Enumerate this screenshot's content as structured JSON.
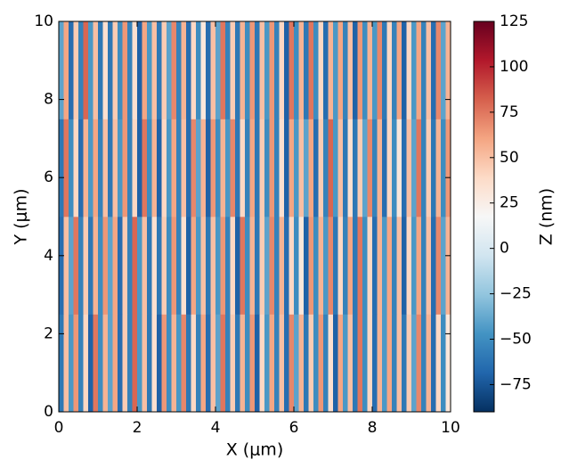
{
  "chart_data": {
    "type": "heatmap",
    "xlabel": "X (μm)",
    "ylabel": "Y (μm)",
    "colorbar_label": "Z (nm)",
    "xlim": [
      0,
      10
    ],
    "ylim": [
      0,
      10
    ],
    "xticks": [
      0,
      2,
      4,
      6,
      8,
      10
    ],
    "yticks": [
      0,
      2,
      4,
      6,
      8,
      10
    ],
    "zlim": [
      -90,
      125
    ],
    "zticks": [
      {
        "value": -75,
        "label": "−75"
      },
      {
        "value": -50,
        "label": "−50"
      },
      {
        "value": -25,
        "label": "−25"
      },
      0,
      25,
      50,
      75,
      100,
      125
    ],
    "colormap": [
      "#053061",
      "#2166ac",
      "#4393c3",
      "#92c5de",
      "#d1e5f0",
      "#f7f7f7",
      "#fddbc7",
      "#f4a582",
      "#d6604d",
      "#b2182b",
      "#67001f"
    ],
    "z": [
      [
        -60,
        50,
        -45,
        65,
        -55,
        40,
        -70,
        75,
        -50,
        55,
        -40,
        60,
        -65,
        45,
        -55,
        80,
        -45,
        50,
        -60,
        35,
        -70,
        65,
        -50,
        55,
        -45,
        70,
        -60,
        40,
        -55,
        60,
        -65,
        50,
        -40,
        75,
        -55,
        45,
        -60,
        55,
        -50,
        65,
        -70,
        40,
        -45,
        60,
        -55,
        50,
        -65,
        70,
        -40,
        55,
        -60,
        45,
        -50,
        65,
        -55,
        35,
        -70,
        60,
        -45,
        50,
        -60,
        75,
        -50,
        40,
        -65,
        55,
        -45,
        60,
        -55,
        50,
        -60,
        45,
        -40,
        70,
        -55,
        55,
        -65,
        40,
        -50,
        30
      ],
      [
        -65,
        50,
        -40,
        75,
        -55,
        45,
        -60,
        55,
        -50,
        65,
        -40,
        60,
        -65,
        45,
        -55,
        80,
        -45,
        50,
        -60,
        35,
        -60,
        45,
        -50,
        65,
        -55,
        35,
        -70,
        60,
        -45,
        50,
        -60,
        50,
        -45,
        65,
        -55,
        40,
        -70,
        75,
        -50,
        55,
        -60,
        45,
        -40,
        70,
        -55,
        55,
        -65,
        40,
        -50,
        30,
        -70,
        65,
        -50,
        55,
        -45,
        70,
        -60,
        40,
        -55,
        60,
        -60,
        75,
        -50,
        40,
        -65,
        55,
        -45,
        60,
        -55,
        50,
        -70,
        40,
        -45,
        60,
        -55,
        50,
        -65,
        70,
        -40,
        55
      ],
      [
        -60,
        75,
        -50,
        40,
        -65,
        55,
        -45,
        60,
        -55,
        50,
        -60,
        50,
        -45,
        65,
        -55,
        40,
        -70,
        75,
        -50,
        55,
        -70,
        40,
        -45,
        60,
        -55,
        50,
        -65,
        70,
        -40,
        55,
        -70,
        65,
        -50,
        55,
        -45,
        70,
        -60,
        40,
        -55,
        60,
        -60,
        45,
        -50,
        65,
        -55,
        35,
        -70,
        60,
        -45,
        50,
        -40,
        60,
        -65,
        45,
        -55,
        80,
        -45,
        50,
        -60,
        35,
        -60,
        45,
        -40,
        70,
        -55,
        55,
        -65,
        40,
        -50,
        30,
        -65,
        50,
        -40,
        75,
        -55,
        45,
        -60,
        55,
        -50,
        65
      ],
      [
        -40,
        60,
        -65,
        45,
        -55,
        80,
        -45,
        50,
        -60,
        35,
        -60,
        45,
        -50,
        65,
        -55,
        35,
        -70,
        60,
        -45,
        50,
        -60,
        45,
        -40,
        70,
        -55,
        55,
        -65,
        40,
        -50,
        30,
        -65,
        50,
        -40,
        75,
        -55,
        45,
        -60,
        55,
        -50,
        65,
        -60,
        50,
        -45,
        65,
        -55,
        40,
        -70,
        75,
        -50,
        55,
        -60,
        75,
        -50,
        40,
        -65,
        55,
        -45,
        60,
        -55,
        50,
        -70,
        65,
        -50,
        55,
        -45,
        70,
        -60,
        40,
        -55,
        60,
        -70,
        40,
        -45,
        60,
        -55,
        50,
        -65,
        70,
        -40,
        55
      ]
    ]
  }
}
